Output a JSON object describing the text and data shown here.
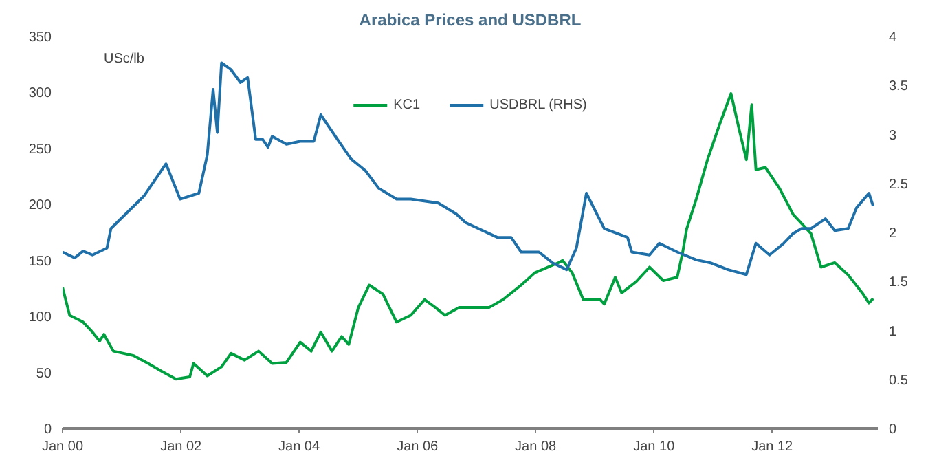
{
  "chart_data": {
    "type": "line",
    "title": "Arabica Prices and USDBRL",
    "ylabel": "USc/lb",
    "xlim": [
      "2000-01-01",
      "2013-10-15"
    ],
    "xticks": [
      {
        "value": "2000-01-01",
        "label": "Jan 00"
      },
      {
        "value": "2002-01-01",
        "label": "Jan 02"
      },
      {
        "value": "2004-01-01",
        "label": "Jan 04"
      },
      {
        "value": "2006-01-01",
        "label": "Jan 06"
      },
      {
        "value": "2008-01-01",
        "label": "Jan 08"
      },
      {
        "value": "2010-01-01",
        "label": "Jan 10"
      },
      {
        "value": "2012-01-01",
        "label": "Jan 12"
      }
    ],
    "ylim": [
      0,
      350
    ],
    "yticks": [
      0,
      50,
      100,
      150,
      200,
      250,
      300,
      350
    ],
    "y2lim": [
      0,
      4
    ],
    "y2ticks": [
      0,
      0.5,
      1,
      1.5,
      2,
      2.5,
      3,
      3.5,
      4
    ],
    "grid": false,
    "legend": "top",
    "series": [
      {
        "name": "KC1",
        "color": "#00a040",
        "x": [
          "2000-01-01",
          "2000-02-14",
          "2000-05-07",
          "2000-07-04",
          "2000-08-17",
          "2000-09-13",
          "2000-11-10",
          "2001-03-16",
          "2001-06-13",
          "2001-09-05",
          "2001-12-02",
          "2002-02-25",
          "2002-03-20",
          "2002-06-13",
          "2002-09-09",
          "2002-11-07",
          "2003-01-29",
          "2003-04-26",
          "2003-07-19",
          "2003-10-15",
          "2004-01-08",
          "2004-03-16",
          "2004-05-14",
          "2004-07-22",
          "2004-09-20",
          "2004-11-03",
          "2005-01-01",
          "2005-03-09",
          "2005-06-02",
          "2005-08-25",
          "2005-11-21",
          "2006-02-14",
          "2006-04-22",
          "2006-06-20",
          "2006-09-16",
          "2006-12-09",
          "2007-03-20",
          "2007-06-13",
          "2007-10-04",
          "2007-12-27",
          "2008-05-21",
          "2008-06-16",
          "2008-08-14",
          "2008-10-22",
          "2009-02-03",
          "2009-02-28",
          "2009-05-07",
          "2009-06-16",
          "2009-09-13",
          "2009-12-05",
          "2010-02-28",
          "2010-05-25",
          "2010-06-27",
          "2010-07-22",
          "2010-09-20",
          "2010-11-28",
          "2011-02-07",
          "2011-04-22",
          "2011-06-13",
          "2011-07-26",
          "2011-08-28",
          "2011-09-23",
          "2011-11-21",
          "2012-02-17",
          "2012-05-10",
          "2012-08-28",
          "2012-10-29",
          "2013-01-22",
          "2013-04-15",
          "2013-07-11",
          "2013-08-21",
          "2013-09-16"
        ],
        "values": [
          126,
          101,
          95,
          86,
          78,
          84,
          69,
          65,
          58,
          51,
          44,
          46,
          58,
          47,
          55,
          67,
          61,
          69,
          58,
          59,
          77,
          69,
          86,
          69,
          82,
          75,
          108,
          128,
          120,
          95,
          101,
          115,
          108,
          101,
          108,
          108,
          108,
          115,
          128,
          139,
          148,
          150,
          139,
          115,
          115,
          111,
          135,
          121,
          131,
          144,
          132,
          135,
          157,
          178,
          205,
          240,
          270,
          299,
          266,
          240,
          289,
          231,
          233,
          214,
          191,
          174,
          144,
          148,
          137,
          121,
          112,
          116
        ]
      },
      {
        "name": "USDBRL (RHS)",
        "color": "#1f6fa8",
        "axis": "y2",
        "x": [
          "2000-01-01",
          "2000-03-16",
          "2000-05-07",
          "2000-07-04",
          "2000-10-01",
          "2000-10-26",
          "2001-05-17",
          "2001-10-01",
          "2001-12-27",
          "2002-04-22",
          "2002-06-13",
          "2002-07-19",
          "2002-08-14",
          "2002-09-09",
          "2002-11-07",
          "2003-01-04",
          "2003-02-17",
          "2003-04-08",
          "2003-05-21",
          "2003-06-23",
          "2003-07-19",
          "2003-10-15",
          "2004-01-08",
          "2004-04-01",
          "2004-05-14",
          "2004-08-25",
          "2004-11-17",
          "2005-02-14",
          "2005-05-07",
          "2005-08-25",
          "2005-11-21",
          "2006-05-10",
          "2006-08-28",
          "2006-10-26",
          "2007-05-10",
          "2007-08-03",
          "2007-10-04",
          "2008-01-22",
          "2008-04-15",
          "2008-07-11",
          "2008-09-09",
          "2008-11-10",
          "2009-02-28",
          "2009-07-22",
          "2009-08-17",
          "2009-12-05",
          "2010-02-03",
          "2010-05-25",
          "2010-09-20",
          "2010-12-16",
          "2011-04-04",
          "2011-07-26",
          "2011-09-23",
          "2011-12-16",
          "2012-03-13",
          "2012-05-10",
          "2012-07-01",
          "2012-08-28",
          "2012-11-25",
          "2013-01-22",
          "2013-04-15",
          "2013-06-05",
          "2013-08-21",
          "2013-09-16"
        ],
        "values": [
          1.8,
          1.74,
          1.81,
          1.77,
          1.84,
          2.04,
          2.37,
          2.7,
          2.34,
          2.4,
          2.79,
          3.46,
          3.02,
          3.73,
          3.66,
          3.53,
          3.58,
          2.95,
          2.95,
          2.87,
          2.98,
          2.9,
          2.93,
          2.93,
          3.2,
          2.95,
          2.75,
          2.63,
          2.45,
          2.34,
          2.34,
          2.3,
          2.19,
          2.1,
          1.95,
          1.95,
          1.8,
          1.8,
          1.69,
          1.62,
          1.84,
          2.4,
          2.04,
          1.95,
          1.8,
          1.77,
          1.89,
          1.8,
          1.72,
          1.69,
          1.62,
          1.57,
          1.89,
          1.77,
          1.89,
          1.99,
          2.04,
          2.04,
          2.14,
          2.02,
          2.04,
          2.25,
          2.4,
          2.27
        ]
      }
    ]
  }
}
